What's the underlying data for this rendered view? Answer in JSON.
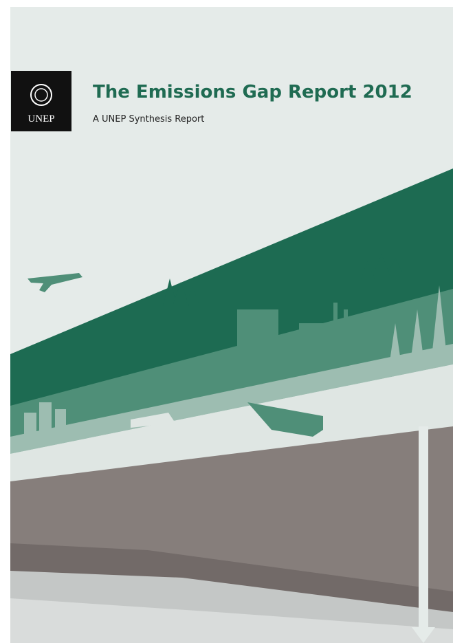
{
  "logo": {
    "label": "UNEP"
  },
  "header": {
    "title": "The Emissions Gap Report 2012",
    "subtitle": "A UNEP Synthesis Report"
  }
}
